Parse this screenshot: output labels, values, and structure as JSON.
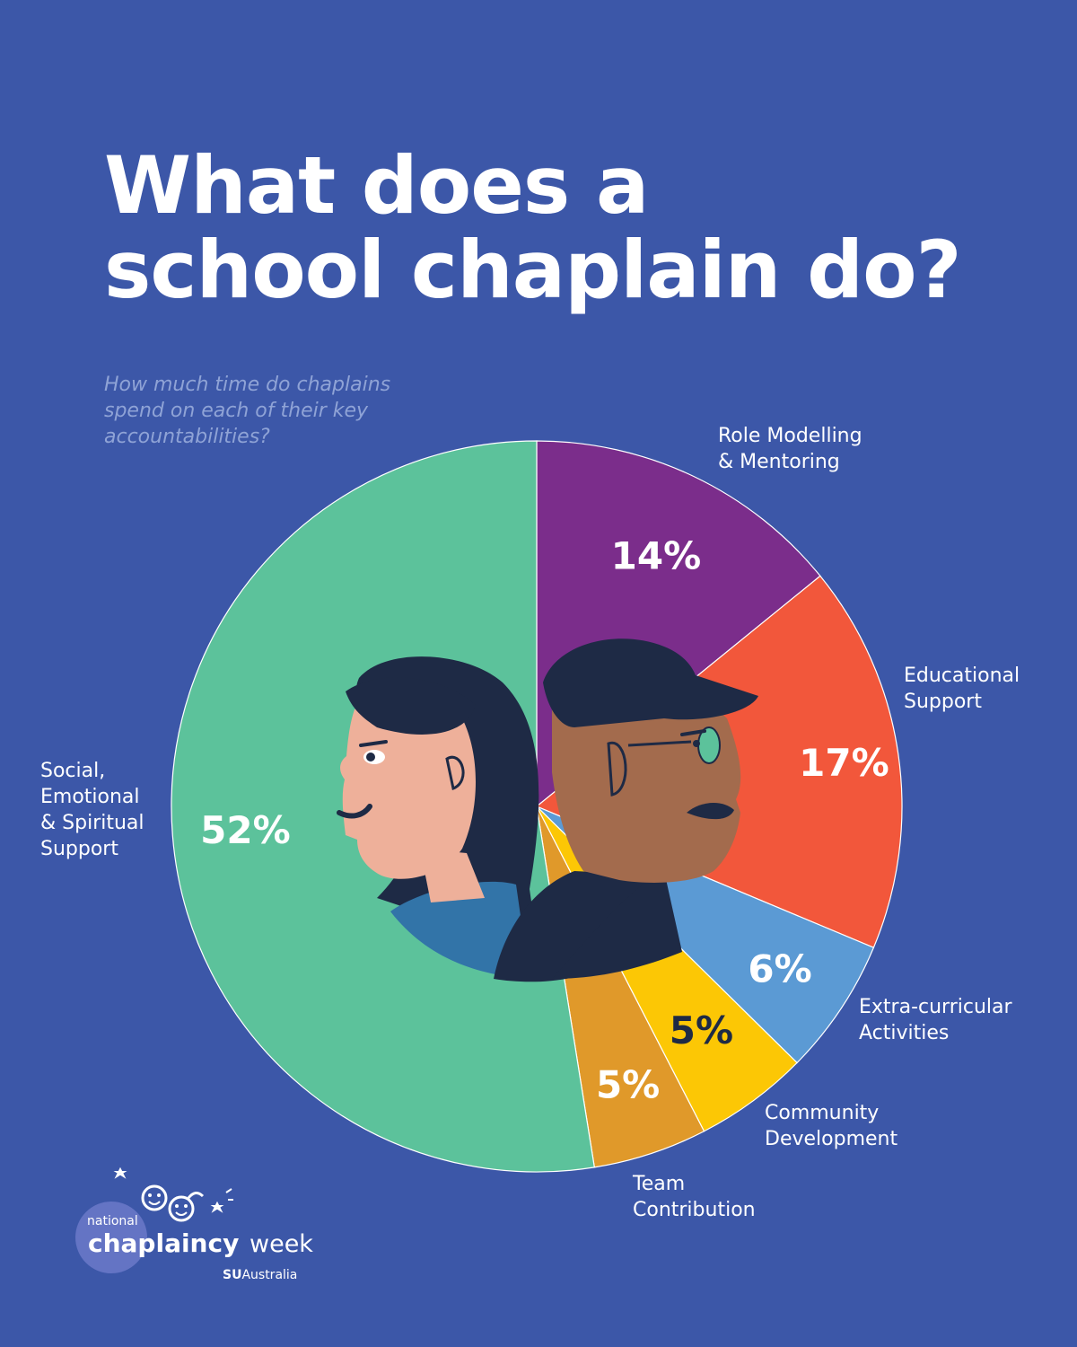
{
  "title_lines": [
    "What does a",
    "school chaplain do?"
  ],
  "subtitle_lines": [
    "How much time do chaplains",
    "spend on each of their key",
    "accountabilities?"
  ],
  "colors": {
    "background": "#3c57a8",
    "role_modelling": "#7b2d8b",
    "educational": "#f2573b",
    "extra_curricular": "#5b9ad4",
    "community": "#fcc705",
    "team": "#e0992a",
    "social": "#5cc29b"
  },
  "chart_data": {
    "type": "pie",
    "unit": "%",
    "slices": [
      {
        "id": "role-modelling",
        "label_lines": [
          "Role Modelling",
          "& Mentoring"
        ],
        "value": 14,
        "value_label": "14%",
        "color": "#7b2d8b",
        "value_color": "#ffffff"
      },
      {
        "id": "educational-support",
        "label_lines": [
          "Educational",
          "Support"
        ],
        "value": 17,
        "value_label": "17%",
        "color": "#f2573b",
        "value_color": "#ffffff"
      },
      {
        "id": "extra-curricular",
        "label_lines": [
          "Extra-curricular",
          "Activities"
        ],
        "value": 6,
        "value_label": "6%",
        "color": "#5b9ad4",
        "value_color": "#ffffff"
      },
      {
        "id": "community-development",
        "label_lines": [
          "Community",
          "Development"
        ],
        "value": 5,
        "value_label": "5%",
        "color": "#fcc705",
        "value_color": "#1e2a45"
      },
      {
        "id": "team-contribution",
        "label_lines": [
          "Team",
          "Contribution"
        ],
        "value": 5,
        "value_label": "5%",
        "color": "#e0992a",
        "value_color": "#ffffff"
      },
      {
        "id": "social-emotional-spiritual",
        "label_lines": [
          "Social,",
          "Emotional",
          "& Spiritual",
          "Support"
        ],
        "value": 52,
        "value_label": "52%",
        "color": "#5cc29b",
        "value_color": "#ffffff"
      }
    ]
  },
  "illustration": {
    "subject": "two-chaplains-portrait",
    "icons": [
      "woman-chaplain-icon",
      "man-chaplain-icon"
    ]
  },
  "logo": {
    "national": "national",
    "chaplaincy": "chaplaincy",
    "week": "week",
    "su_bold": "SU",
    "su_rest": "Australia",
    "icon": "smiling-faces-icon"
  }
}
